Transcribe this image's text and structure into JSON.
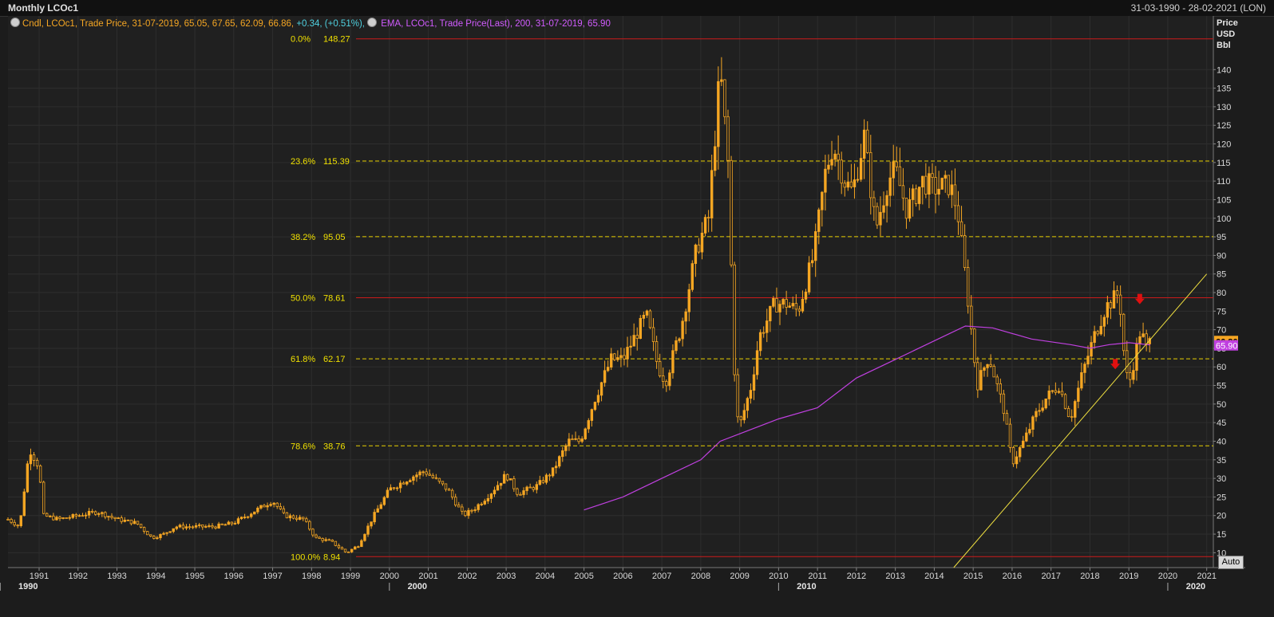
{
  "window": {
    "title": "Monthly LCOc1",
    "date_range": "31-03-1990 - 28-02-2021 (LON)"
  },
  "legend": {
    "series1": "Cndl, LCOc1, Trade Price, 31-07-2019, 65.05, 67.65, 62.09, 66.86,",
    "change": "+0.34, (+0.51%),",
    "series2": "EMA, LCOc1, Trade Price(Last), 200, 31-07-2019, 65.90"
  },
  "axis_header": {
    "line1": "Price",
    "line2": "USD",
    "line3": "Bbl"
  },
  "auto_button": "Auto",
  "colors": {
    "candle": "#f5a623",
    "ema": "#c040e0",
    "fib_dashed": "#e8d000",
    "fib_solid": "#cc1a1a",
    "trendline": "#f0e040",
    "arrow": "#e01010",
    "last_price_tag": "#f5a623",
    "ema_tag": "#c040e0"
  },
  "chart_data": {
    "type": "candlestick",
    "title": "Monthly LCOc1",
    "ylabel": "Price USD Bbl",
    "ylim": [
      6,
      151
    ],
    "xlim": [
      1990.2,
      2021.17
    ],
    "y_ticks": [
      10,
      15,
      20,
      25,
      30,
      35,
      40,
      45,
      50,
      55,
      60,
      65,
      70,
      75,
      80,
      85,
      90,
      95,
      100,
      105,
      110,
      115,
      120,
      125,
      130,
      135,
      140
    ],
    "x_tick_labels": [
      "1991",
      "1992",
      "1993",
      "1994",
      "1995",
      "1996",
      "1997",
      "1998",
      "1999",
      "2000",
      "2001",
      "2002",
      "2003",
      "2004",
      "2005",
      "2006",
      "2007",
      "2008",
      "2009",
      "2010",
      "2011",
      "2012",
      "2013",
      "2014",
      "2015",
      "2016",
      "2017",
      "2018",
      "2019",
      "2020",
      "2021"
    ],
    "x_decade_labels": [
      "1990",
      "2000",
      "2010",
      "2020"
    ],
    "grid": true,
    "fibonacci": [
      {
        "label": "0.0%",
        "value": "148.27",
        "level": 148.27,
        "style": "solid"
      },
      {
        "label": "23.6%",
        "value": "115.39",
        "level": 115.39,
        "style": "dashed"
      },
      {
        "label": "38.2%",
        "value": "95.05",
        "level": 95.05,
        "style": "dashed"
      },
      {
        "label": "50.0%",
        "value": "78.61",
        "level": 78.61,
        "style": "solid"
      },
      {
        "label": "61.8%",
        "value": "62.17",
        "level": 62.17,
        "style": "dashed"
      },
      {
        "label": "78.6%",
        "value": "38.76",
        "level": 38.76,
        "style": "dashed"
      },
      {
        "label": "100.0%",
        "value": "8.94",
        "level": 8.94,
        "style": "solid"
      }
    ],
    "last_price": "66.86",
    "ema_last": "65.90",
    "trendline": {
      "x1": 2014.5,
      "y1": 6,
      "x2": 2021.0,
      "y2": 85
    },
    "arrows": [
      {
        "x": 2018.65,
        "y": 60
      },
      {
        "x": 2019.28,
        "y": 77.5
      }
    ],
    "price_path": [
      [
        1990.2,
        19
      ],
      [
        1990.5,
        17
      ],
      [
        1990.75,
        38
      ],
      [
        1991.0,
        33
      ],
      [
        1991.1,
        20
      ],
      [
        1991.5,
        19
      ],
      [
        1992.0,
        20
      ],
      [
        1992.5,
        21
      ],
      [
        1993.0,
        19
      ],
      [
        1993.5,
        18
      ],
      [
        1993.9,
        14
      ],
      [
        1994.2,
        15
      ],
      [
        1994.5,
        17
      ],
      [
        1995.0,
        17
      ],
      [
        1995.5,
        17
      ],
      [
        1996.0,
        18
      ],
      [
        1996.5,
        21
      ],
      [
        1997.0,
        24
      ],
      [
        1997.3,
        20
      ],
      [
        1997.8,
        19
      ],
      [
        1998.1,
        14
      ],
      [
        1998.5,
        13
      ],
      [
        1998.9,
        10
      ],
      [
        1999.2,
        12
      ],
      [
        1999.6,
        20
      ],
      [
        2000.0,
        27
      ],
      [
        2000.5,
        30
      ],
      [
        2000.9,
        32
      ],
      [
        2001.5,
        27
      ],
      [
        2001.9,
        20
      ],
      [
        2002.2,
        22
      ],
      [
        2002.6,
        26
      ],
      [
        2003.0,
        31
      ],
      [
        2003.3,
        26
      ],
      [
        2003.8,
        28
      ],
      [
        2004.2,
        32
      ],
      [
        2004.6,
        40
      ],
      [
        2004.9,
        40
      ],
      [
        2005.3,
        52
      ],
      [
        2005.7,
        62
      ],
      [
        2006.0,
        62
      ],
      [
        2006.4,
        70
      ],
      [
        2006.6,
        74
      ],
      [
        2006.9,
        60
      ],
      [
        2007.1,
        56
      ],
      [
        2007.5,
        71
      ],
      [
        2007.9,
        92
      ],
      [
        2008.2,
        100
      ],
      [
        2008.5,
        140
      ],
      [
        2008.7,
        115
      ],
      [
        2008.9,
        48
      ],
      [
        2009.0,
        44
      ],
      [
        2009.3,
        55
      ],
      [
        2009.5,
        68
      ],
      [
        2009.9,
        77
      ],
      [
        2010.2,
        77
      ],
      [
        2010.5,
        75
      ],
      [
        2010.9,
        90
      ],
      [
        2011.2,
        112
      ],
      [
        2011.4,
        120
      ],
      [
        2011.7,
        110
      ],
      [
        2011.9,
        107
      ],
      [
        2012.2,
        122
      ],
      [
        2012.5,
        97
      ],
      [
        2012.8,
        110
      ],
      [
        2013.0,
        113
      ],
      [
        2013.3,
        102
      ],
      [
        2013.7,
        110
      ],
      [
        2014.0,
        108
      ],
      [
        2014.4,
        109
      ],
      [
        2014.6,
        102
      ],
      [
        2014.9,
        75
      ],
      [
        2015.1,
        55
      ],
      [
        2015.4,
        63
      ],
      [
        2015.8,
        48
      ],
      [
        2016.0,
        34
      ],
      [
        2016.3,
        40
      ],
      [
        2016.6,
        47
      ],
      [
        2016.9,
        52
      ],
      [
        2017.2,
        55
      ],
      [
        2017.5,
        46
      ],
      [
        2017.8,
        58
      ],
      [
        2018.1,
        68
      ],
      [
        2018.4,
        76
      ],
      [
        2018.75,
        80
      ],
      [
        2018.9,
        60
      ],
      [
        2019.0,
        55
      ],
      [
        2019.3,
        70
      ],
      [
        2019.45,
        65
      ],
      [
        2019.55,
        67
      ]
    ],
    "ema_path": [
      [
        2005.0,
        21.5
      ],
      [
        2006.0,
        25
      ],
      [
        2007.0,
        30
      ],
      [
        2008.0,
        35
      ],
      [
        2008.5,
        40
      ],
      [
        2009.0,
        42
      ],
      [
        2010.0,
        46
      ],
      [
        2011.0,
        49
      ],
      [
        2012.0,
        57
      ],
      [
        2013.0,
        62
      ],
      [
        2014.0,
        67
      ],
      [
        2014.8,
        71
      ],
      [
        2015.5,
        70.5
      ],
      [
        2016.5,
        67.5
      ],
      [
        2017.5,
        66
      ],
      [
        2018.0,
        65
      ],
      [
        2018.5,
        66
      ],
      [
        2019.0,
        66.5
      ],
      [
        2019.55,
        65.9
      ]
    ]
  }
}
